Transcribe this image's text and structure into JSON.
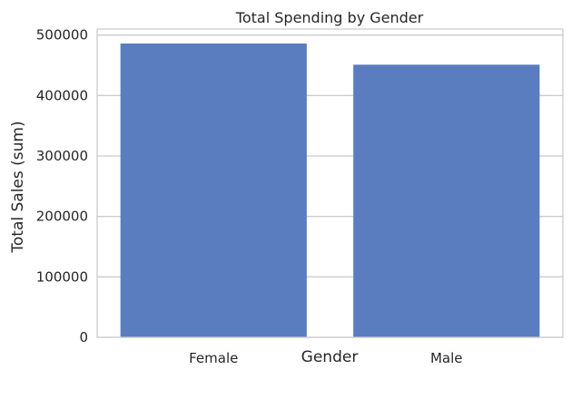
{
  "chart_data": {
    "type": "bar",
    "title": "Total Spending by Gender",
    "xlabel": "Gender",
    "ylabel": "Total Sales (sum)",
    "categories": [
      "Female",
      "Male"
    ],
    "values": [
      486000,
      451000
    ],
    "ylim": [
      0,
      500000
    ],
    "yticks": [
      0,
      100000,
      200000,
      300000,
      400000,
      500000
    ],
    "ytick_labels": [
      "0",
      "100000",
      "200000",
      "300000",
      "400000",
      "500000"
    ],
    "grid": "y",
    "bar_color": "#5a7dbf",
    "grid_color": "#cccccc",
    "text_color": "#262626"
  }
}
